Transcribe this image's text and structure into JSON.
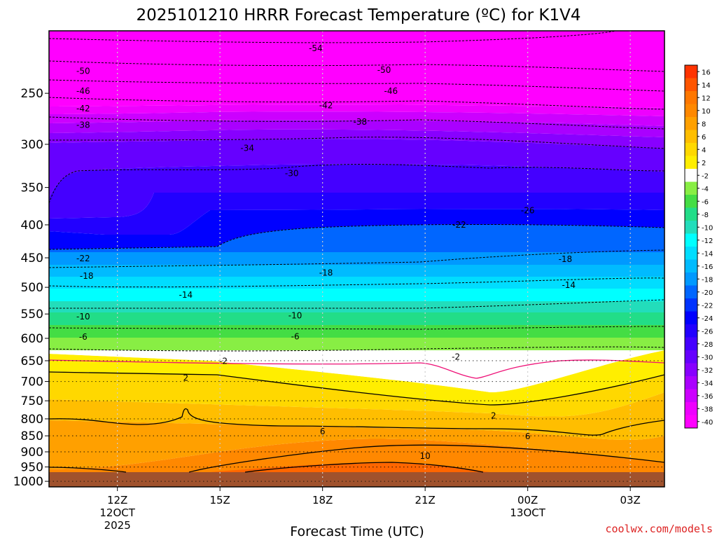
{
  "chart_data": {
    "type": "heatmap",
    "title": "2025101210 HRRR Forecast Temperature (ºC) for K1V4",
    "xlabel": "Forecast Time (UTC)",
    "ylabel": "",
    "credit": "coolwx.com/models",
    "x_ticks": [
      {
        "label": "12Z",
        "sub": [
          "12OCT",
          "2025"
        ],
        "hour": 12
      },
      {
        "label": "15Z",
        "sub": [],
        "hour": 15
      },
      {
        "label": "18Z",
        "sub": [],
        "hour": 18
      },
      {
        "label": "21Z",
        "sub": [],
        "hour": 21
      },
      {
        "label": "00Z",
        "sub": [
          "13OCT"
        ],
        "hour": 24
      },
      {
        "label": "03Z",
        "sub": [],
        "hour": 27
      }
    ],
    "xlim": [
      10,
      28
    ],
    "y_axis": "pressure (hPa), log scale, reversed",
    "ylim": [
      1020,
      200
    ],
    "y_ticks": [
      250,
      300,
      350,
      400,
      450,
      500,
      550,
      600,
      650,
      700,
      750,
      800,
      850,
      900,
      950,
      1000
    ],
    "colorbar": {
      "labels": [
        "16",
        "14",
        "12",
        "10",
        "8",
        "6",
        "4",
        "2",
        "-2",
        "-4",
        "-6",
        "-8",
        "-10",
        "-12",
        "-14",
        "-16",
        "-18",
        "-20",
        "-22",
        "-24",
        "-26",
        "-28",
        "-30",
        "-32",
        "-34",
        "-36",
        "-38",
        "-40"
      ],
      "colors": [
        "#ff3300",
        "#ff5500",
        "#ff7700",
        "#ff8800",
        "#ffa000",
        "#ffbe00",
        "#ffd800",
        "#ffee00",
        "#ffffff",
        "#88ee44",
        "#44dd44",
        "#22dd88",
        "#22ddbb",
        "#00ffff",
        "#00ddff",
        "#00bbff",
        "#0099ff",
        "#0066ff",
        "#0033ff",
        "#0000ff",
        "#2200ff",
        "#4400ff",
        "#6600ff",
        "#8800ff",
        "#aa00ff",
        "#cc00ff",
        "#ee00ff",
        "#ff00ff"
      ]
    },
    "contour_labels": [
      {
        "text": "-54",
        "hour": 17.8,
        "p": 213
      },
      {
        "text": "-50",
        "hour": 11.0,
        "p": 231
      },
      {
        "text": "-50",
        "hour": 19.8,
        "p": 230
      },
      {
        "text": "-46",
        "hour": 11.0,
        "p": 248
      },
      {
        "text": "-46",
        "hour": 20.0,
        "p": 248
      },
      {
        "text": "-42",
        "hour": 11.0,
        "p": 264
      },
      {
        "text": "-42",
        "hour": 18.1,
        "p": 261
      },
      {
        "text": "-38",
        "hour": 11.0,
        "p": 280
      },
      {
        "text": "-38",
        "hour": 19.1,
        "p": 277
      },
      {
        "text": "-34",
        "hour": 15.8,
        "p": 304
      },
      {
        "text": "-30",
        "hour": 17.1,
        "p": 333
      },
      {
        "text": "-26",
        "hour": 24.0,
        "p": 380
      },
      {
        "text": "-22",
        "hour": 22.0,
        "p": 400
      },
      {
        "text": "-22",
        "hour": 11.0,
        "p": 451
      },
      {
        "text": "-18",
        "hour": 11.1,
        "p": 480
      },
      {
        "text": "-18",
        "hour": 18.1,
        "p": 475
      },
      {
        "text": "-18",
        "hour": 25.1,
        "p": 452
      },
      {
        "text": "-14",
        "hour": 14.0,
        "p": 514
      },
      {
        "text": "-14",
        "hour": 25.2,
        "p": 496
      },
      {
        "text": "-10",
        "hour": 11.0,
        "p": 555
      },
      {
        "text": "-10",
        "hour": 17.2,
        "p": 553
      },
      {
        "text": "-6",
        "hour": 11.0,
        "p": 597
      },
      {
        "text": "-6",
        "hour": 17.2,
        "p": 596
      },
      {
        "text": "-2",
        "hour": 15.1,
        "p": 651
      },
      {
        "text": "-2",
        "hour": 21.9,
        "p": 641
      },
      {
        "text": "2",
        "hour": 14.0,
        "p": 691
      },
      {
        "text": "2",
        "hour": 23.0,
        "p": 791
      },
      {
        "text": "6",
        "hour": 18.0,
        "p": 837
      },
      {
        "text": "6",
        "hour": 24.0,
        "p": 852
      },
      {
        "text": "10",
        "hour": 21.0,
        "p": 914
      }
    ]
  }
}
